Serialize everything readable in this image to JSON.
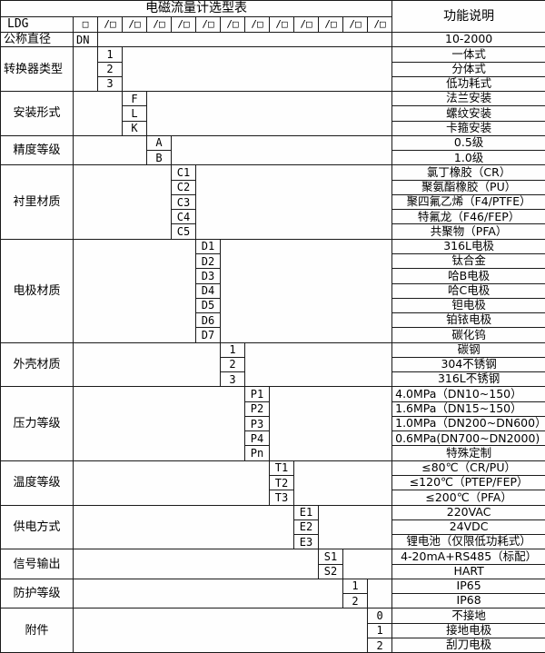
{
  "title": "电磁流量计选型表",
  "function_header": "功能说明",
  "model_row": {
    "prefix": "LDG",
    "dn_box": "□",
    "boxes": [
      "/□",
      "/□",
      "/□",
      "/□",
      "/□",
      "/□",
      "/□",
      "/□",
      "/□",
      "/□",
      "/□",
      "/□"
    ]
  },
  "groups": [
    {
      "label": "公称直径",
      "col": 1,
      "label_align": "left",
      "options": [
        {
          "code": "DN",
          "code_align": "left",
          "desc": "10-2000"
        }
      ]
    },
    {
      "label": "转换器类型",
      "col": 2,
      "label_align": "left",
      "options": [
        {
          "code": "1",
          "desc": "一体式"
        },
        {
          "code": "2",
          "desc": "分体式"
        },
        {
          "code": "3",
          "desc": "低功耗式"
        }
      ]
    },
    {
      "label": "安装形式",
      "col": 3,
      "options": [
        {
          "code": "F",
          "desc": "法兰安装"
        },
        {
          "code": "L",
          "desc": "螺纹安装"
        },
        {
          "code": "K",
          "desc": "卡箍安装"
        }
      ]
    },
    {
      "label": "精度等级",
      "col": 4,
      "options": [
        {
          "code": "A",
          "desc": "0.5级"
        },
        {
          "code": "B",
          "desc": "1.0级"
        }
      ]
    },
    {
      "label": "衬里材质",
      "col": 5,
      "options": [
        {
          "code": "C1",
          "desc": "氯丁橡胶（CR）"
        },
        {
          "code": "C2",
          "desc": "聚氨酯橡胶（PU）"
        },
        {
          "code": "C3",
          "desc": "聚四氟乙烯（F4/PTFE）"
        },
        {
          "code": "C4",
          "desc": "特氟龙（F46/FEP）"
        },
        {
          "code": "C5",
          "desc": "共聚物（PFA）"
        }
      ]
    },
    {
      "label": "电极材质",
      "col": 6,
      "options": [
        {
          "code": "D1",
          "desc": "316L电极"
        },
        {
          "code": "D2",
          "desc": "钛合金"
        },
        {
          "code": "D3",
          "desc": "哈B电极"
        },
        {
          "code": "D4",
          "desc": "哈C电极"
        },
        {
          "code": "D5",
          "desc": "钽电极"
        },
        {
          "code": "D6",
          "desc": "铂铱电极"
        },
        {
          "code": "D7",
          "desc": "碳化钨"
        }
      ]
    },
    {
      "label": "外壳材质",
      "col": 7,
      "options": [
        {
          "code": "1",
          "desc": "碳钢"
        },
        {
          "code": "2",
          "desc": "304不锈钢"
        },
        {
          "code": "3",
          "desc": "316L不锈钢"
        }
      ]
    },
    {
      "label": "压力等级",
      "col": 8,
      "options": [
        {
          "code": "P1",
          "desc": "4.0MPa（DN10~150）",
          "desc_align": "left"
        },
        {
          "code": "P2",
          "desc": "1.6MPa（DN15~150）",
          "desc_align": "left"
        },
        {
          "code": "P3",
          "desc": "1.0MPa（DN200~DN600）",
          "desc_align": "left"
        },
        {
          "code": "P4",
          "desc": "0.6MPa(DN700~DN2000)",
          "desc_align": "left"
        },
        {
          "code": "Pn",
          "desc": "特殊定制"
        }
      ]
    },
    {
      "label": "温度等级",
      "col": 9,
      "options": [
        {
          "code": "T1",
          "desc": "≤80℃（CR/PU）"
        },
        {
          "code": "T2",
          "desc": "≤120℃（PTEP/FEP）"
        },
        {
          "code": "T3",
          "desc": "≤200℃（PFA）"
        }
      ]
    },
    {
      "label": "供电方式",
      "col": 10,
      "options": [
        {
          "code": "E1",
          "desc": "220VAC"
        },
        {
          "code": "E2",
          "desc": "24VDC"
        },
        {
          "code": "E3",
          "desc": "锂电池（仅限低功耗式）"
        }
      ]
    },
    {
      "label": "信号输出",
      "col": 11,
      "options": [
        {
          "code": "S1",
          "desc": "4-20mA+RS485（标配）"
        },
        {
          "code": "S2",
          "desc": "HART"
        }
      ]
    },
    {
      "label": "防护等级",
      "col": 12,
      "options": [
        {
          "code": "1",
          "desc": "IP65"
        },
        {
          "code": "2",
          "desc": "IP68"
        }
      ]
    },
    {
      "label": "附件",
      "col": 13,
      "options": [
        {
          "code": "0",
          "desc": "不接地"
        },
        {
          "code": "1",
          "desc": "接地电极"
        },
        {
          "code": "2",
          "desc": "刮刀电极"
        }
      ]
    }
  ],
  "colors": {
    "border": "#1a1a1a",
    "background": "#ffffff",
    "text": "#000000"
  }
}
